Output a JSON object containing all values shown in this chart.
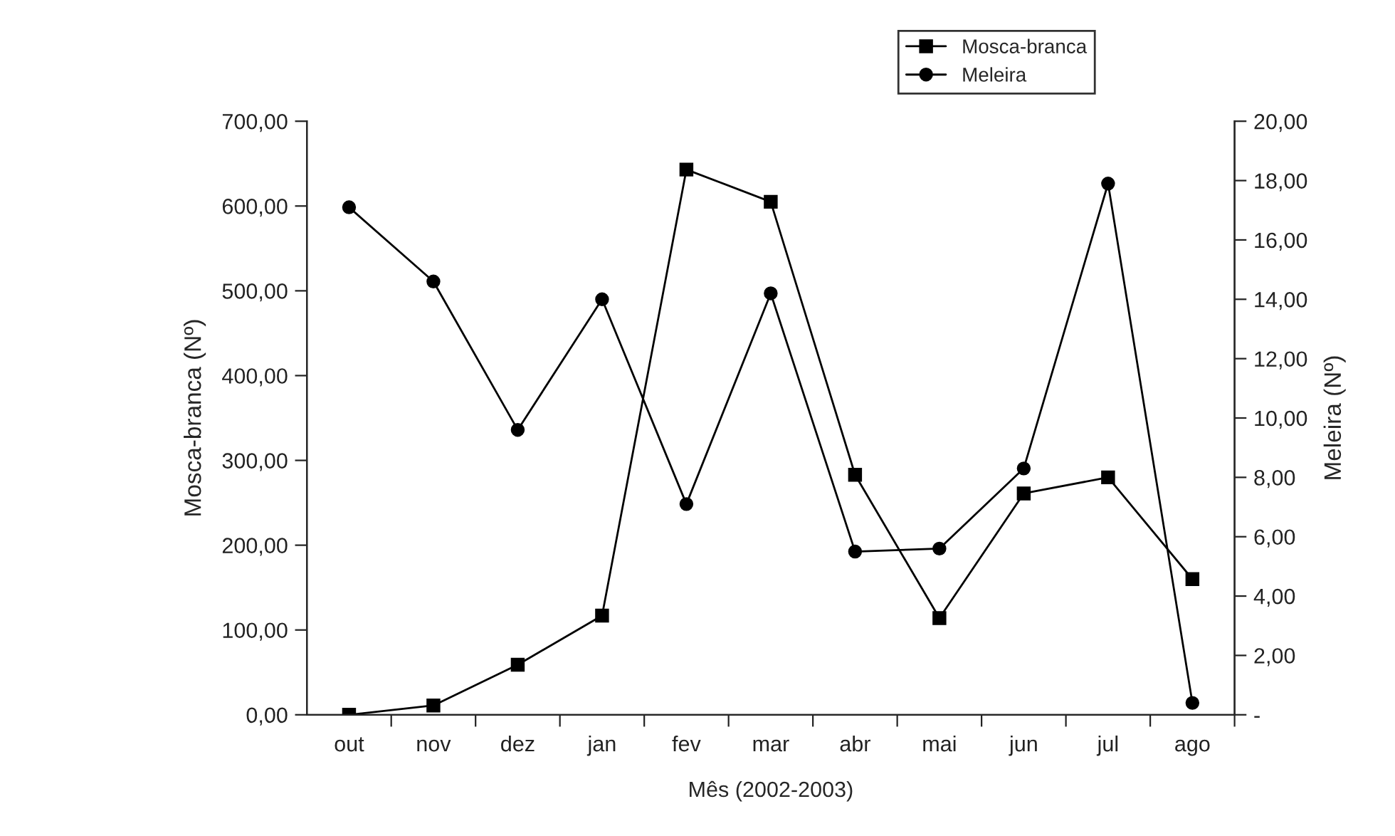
{
  "chart_data": {
    "type": "line",
    "xlabel": "Mês (2002-2003)",
    "ylabel": "Mosca-branca (Nº)",
    "y2label": "Meleira (Nº)",
    "categories": [
      "out",
      "nov",
      "dez",
      "jan",
      "fev",
      "mar",
      "abr",
      "mai",
      "jun",
      "jul",
      "ago"
    ],
    "series": [
      {
        "name": "Mosca-branca",
        "color": "#000000",
        "marker": "square",
        "values": [
          0,
          11,
          59,
          117,
          643,
          605,
          283,
          114,
          261,
          280,
          160
        ]
      },
      {
        "name": "Meleira",
        "color": "#000000",
        "marker": "circle",
        "axis": "y2",
        "values": [
          17.1,
          14.6,
          9.6,
          14.0,
          7.1,
          14.2,
          5.5,
          5.6,
          8.3,
          17.9,
          0.4
        ]
      }
    ],
    "ylim": [
      0,
      700
    ],
    "yticks": [
      {
        "value": 0,
        "label": "0,00"
      },
      {
        "value": 100,
        "label": "100,00"
      },
      {
        "value": 200,
        "label": "200,00"
      },
      {
        "value": 300,
        "label": "300,00"
      },
      {
        "value": 400,
        "label": "400,00"
      },
      {
        "value": 500,
        "label": "500,00"
      },
      {
        "value": 600,
        "label": "600,00"
      },
      {
        "value": 700,
        "label": "700,00"
      }
    ],
    "y2lim": [
      0,
      20
    ],
    "y2ticks": [
      {
        "value": 0,
        "label": "-"
      },
      {
        "value": 2,
        "label": "2,00"
      },
      {
        "value": 4,
        "label": "4,00"
      },
      {
        "value": 6,
        "label": "6,00"
      },
      {
        "value": 8,
        "label": "8,00"
      },
      {
        "value": 10,
        "label": "10,00"
      },
      {
        "value": 12,
        "label": "12,00"
      },
      {
        "value": 14,
        "label": "14,00"
      },
      {
        "value": 16,
        "label": "16,00"
      },
      {
        "value": 18,
        "label": "18,00"
      },
      {
        "value": 20,
        "label": "20,00"
      }
    ],
    "legend": "top right",
    "line_style": "solid"
  }
}
